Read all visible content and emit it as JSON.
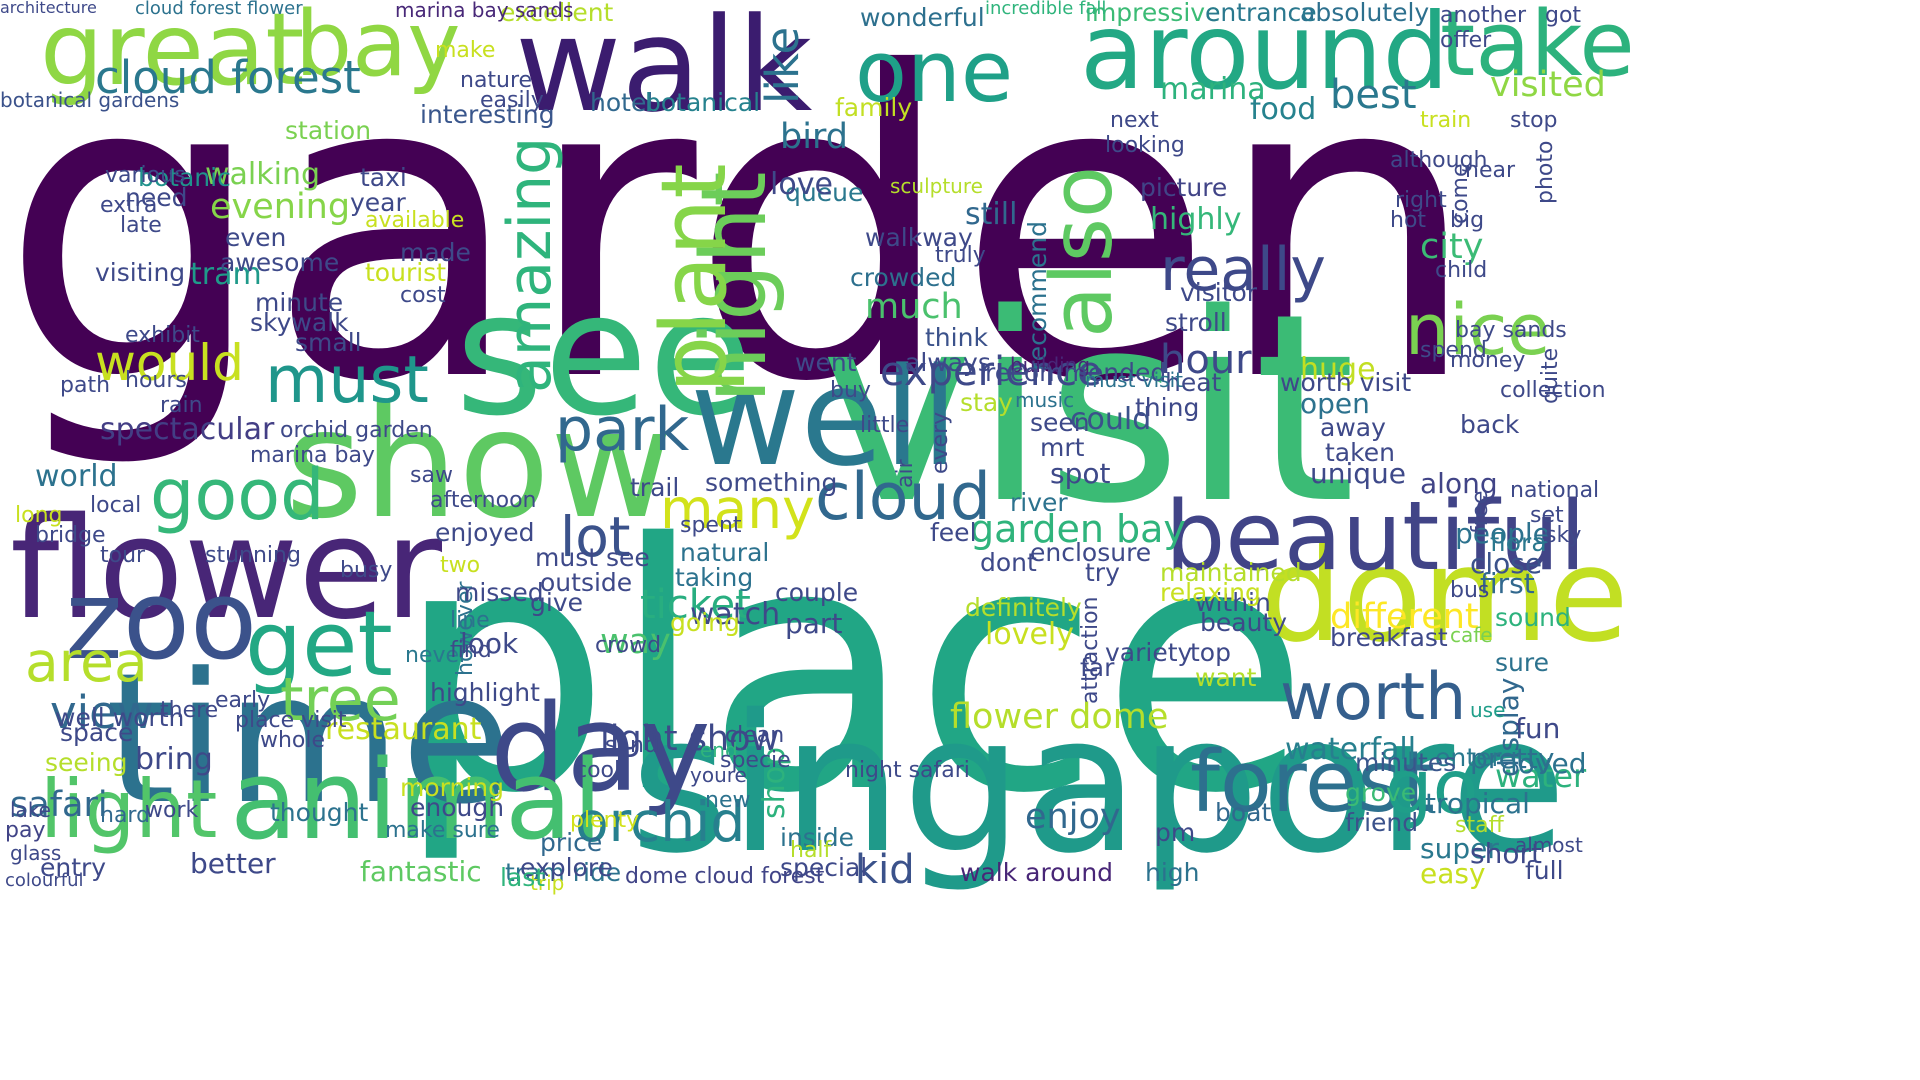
{
  "words": [
    {
      "text": "garden",
      "color": "#440154"
    },
    {
      "text": "place",
      "color": "#21a685"
    },
    {
      "text": "visit",
      "color": "#3bbb75"
    },
    {
      "text": "singapore",
      "color": "#1f9a8a"
    },
    {
      "text": "see",
      "color": "#35b779"
    },
    {
      "text": "time",
      "color": "#2c728e"
    },
    {
      "text": "walk",
      "color": "#3b1c6f"
    },
    {
      "text": "great",
      "color": "#8fd744"
    },
    {
      "text": "bay",
      "color": "#90d743"
    },
    {
      "text": "around",
      "color": "#22a884"
    },
    {
      "text": "well",
      "color": "#2a788e"
    },
    {
      "text": "show",
      "color": "#5ec962"
    },
    {
      "text": "flower",
      "color": "#482677"
    },
    {
      "text": "zoo",
      "color": "#3b528b"
    },
    {
      "text": "dome",
      "color": "#c2df23"
    },
    {
      "text": "day",
      "color": "#3e4989"
    },
    {
      "text": "animal",
      "color": "#44bf70"
    },
    {
      "text": "beautiful",
      "color": "#414487"
    },
    {
      "text": "forest",
      "color": "#2d708e"
    },
    {
      "text": "one",
      "color": "#1fa088"
    },
    {
      "text": "take",
      "color": "#2db27d"
    },
    {
      "text": "also",
      "color": "#5ec962"
    },
    {
      "text": "night",
      "color": "#6ccd5a"
    },
    {
      "text": "plant",
      "color": "#86d549"
    },
    {
      "text": "amazing",
      "color": "#2fb47c"
    },
    {
      "text": "light",
      "color": "#52c569"
    },
    {
      "text": "get",
      "color": "#22a884"
    },
    {
      "text": "good",
      "color": "#35b779"
    },
    {
      "text": "nice",
      "color": "#7ad151"
    },
    {
      "text": "go",
      "color": "#1f9e89"
    },
    {
      "text": "worth",
      "color": "#355f8d"
    },
    {
      "text": "orchid",
      "color": "#27808e"
    },
    {
      "text": "cloud",
      "color": "#31688e"
    },
    {
      "text": "really",
      "color": "#3e4989"
    },
    {
      "text": "park",
      "color": "#31688e"
    },
    {
      "text": "cloud forest",
      "color": "#2a788e"
    },
    {
      "text": "would",
      "color": "#c8e020"
    },
    {
      "text": "must",
      "color": "#1f968b"
    },
    {
      "text": "area",
      "color": "#b5de2b"
    },
    {
      "text": "tree",
      "color": "#73d056"
    },
    {
      "text": "many",
      "color": "#d2e21b"
    },
    {
      "text": "lot",
      "color": "#3b528b"
    },
    {
      "text": "view",
      "color": "#31688e"
    },
    {
      "text": "experience",
      "color": "#3e4989"
    },
    {
      "text": "hour",
      "color": "#3e4989"
    },
    {
      "text": "like",
      "color": "#2c728e"
    },
    {
      "text": "visited",
      "color": "#8fd744"
    },
    {
      "text": "best",
      "color": "#2a788e"
    },
    {
      "text": "garden bay",
      "color": "#2fb47c"
    },
    {
      "text": "light show",
      "color": "#3e4989"
    },
    {
      "text": "different",
      "color": "#fde725"
    },
    {
      "text": "flower dome",
      "color": "#b5de2b"
    },
    {
      "text": "waterfall",
      "color": "#277f8e"
    },
    {
      "text": "water",
      "color": "#2db27d"
    },
    {
      "text": "enjoy",
      "color": "#31688e"
    },
    {
      "text": "kid",
      "color": "#3b528b"
    },
    {
      "text": "ticket",
      "color": "#28ae80"
    },
    {
      "text": "way",
      "color": "#4ac16d"
    },
    {
      "text": "bird",
      "color": "#2c728e"
    },
    {
      "text": "hotel",
      "color": "#31688e"
    },
    {
      "text": "food",
      "color": "#26828e"
    },
    {
      "text": "marina",
      "color": "#2db27d"
    },
    {
      "text": "visiting",
      "color": "#3e4989"
    },
    {
      "text": "evening",
      "color": "#86d549"
    },
    {
      "text": "walking",
      "color": "#7ad151"
    },
    {
      "text": "world",
      "color": "#2c728e"
    },
    {
      "text": "city",
      "color": "#3bbb75"
    },
    {
      "text": "tram",
      "color": "#1f9a8a"
    },
    {
      "text": "restaurant",
      "color": "#c8e020"
    },
    {
      "text": "safari",
      "color": "#31688e"
    },
    {
      "text": "fantastic",
      "color": "#5ec962"
    },
    {
      "text": "tram ride",
      "color": "#2c728e"
    },
    {
      "text": "walk around",
      "color": "#482677"
    },
    {
      "text": "dome cloud forest",
      "color": "#414487"
    },
    {
      "text": "spectacular",
      "color": "#433e85"
    },
    {
      "text": "wonderful",
      "color": "#2d708e"
    },
    {
      "text": "excellent",
      "color": "#b5de2b"
    },
    {
      "text": "impressive",
      "color": "#3bbb75"
    },
    {
      "text": "absolutely",
      "color": "#2d708e"
    },
    {
      "text": "entrance",
      "color": "#2a788e"
    },
    {
      "text": "incredible fall",
      "color": "#2fb47c"
    },
    {
      "text": "marina bay sands",
      "color": "#482878"
    },
    {
      "text": "architecture",
      "color": "#3e4989"
    },
    {
      "text": "cloud forest flower",
      "color": "#2c728e"
    },
    {
      "text": "botanical gardens",
      "color": "#3b528b"
    },
    {
      "text": "interesting",
      "color": "#39568c"
    },
    {
      "text": "botanical",
      "color": "#26828e"
    },
    {
      "text": "botanic",
      "color": "#20928c"
    },
    {
      "text": "station",
      "color": "#7ad151"
    },
    {
      "text": "family",
      "color": "#c2df23"
    },
    {
      "text": "queue",
      "color": "#2a788e"
    },
    {
      "text": "love",
      "color": "#3e4989"
    },
    {
      "text": "sculpture",
      "color": "#b5de2b"
    },
    {
      "text": "still",
      "color": "#31688e"
    },
    {
      "text": "walkway",
      "color": "#3e4989"
    },
    {
      "text": "crowded",
      "color": "#2d708e"
    },
    {
      "text": "much",
      "color": "#4ac16d"
    },
    {
      "text": "think",
      "color": "#3b528b"
    },
    {
      "text": "always",
      "color": "#3e4989"
    },
    {
      "text": "picture",
      "color": "#414487"
    },
    {
      "text": "highly",
      "color": "#35b779"
    },
    {
      "text": "recommend",
      "color": "#2c728e"
    },
    {
      "text": "visitor",
      "color": "#3e4989"
    },
    {
      "text": "stroll",
      "color": "#3e4989"
    },
    {
      "text": "building",
      "color": "#482677"
    },
    {
      "text": "music",
      "color": "#2c728e"
    },
    {
      "text": "could",
      "color": "#3b528b"
    },
    {
      "text": "open",
      "color": "#2c728e"
    },
    {
      "text": "huge",
      "color": "#c2df23"
    },
    {
      "text": "back",
      "color": "#3e4989"
    },
    {
      "text": "along",
      "color": "#414487"
    },
    {
      "text": "people",
      "color": "#2c728e"
    },
    {
      "text": "close",
      "color": "#3b528b"
    },
    {
      "text": "flora",
      "color": "#2a788e"
    },
    {
      "text": "first",
      "color": "#31688e"
    },
    {
      "text": "sound",
      "color": "#2db27d"
    },
    {
      "text": "breakfast",
      "color": "#3e4989"
    },
    {
      "text": "cafe",
      "color": "#7ad151"
    },
    {
      "text": "sure",
      "color": "#2c728e"
    },
    {
      "text": "display",
      "color": "#31688e"
    },
    {
      "text": "use",
      "color": "#1f9e89"
    },
    {
      "text": "fun",
      "color": "#3e4989"
    },
    {
      "text": "loved",
      "color": "#2c728e"
    },
    {
      "text": "pretty",
      "color": "#2d708e"
    },
    {
      "text": "tropical",
      "color": "#2c728e"
    },
    {
      "text": "staff",
      "color": "#b5de2b"
    },
    {
      "text": "friend",
      "color": "#3b528b"
    },
    {
      "text": "super",
      "color": "#2a788e"
    },
    {
      "text": "short",
      "color": "#3e4989"
    },
    {
      "text": "easy",
      "color": "#c8e020"
    },
    {
      "text": "full",
      "color": "#3e4989"
    },
    {
      "text": "almost",
      "color": "#3e4989"
    },
    {
      "text": "enter",
      "color": "#2a788e"
    },
    {
      "text": "minutes",
      "color": "#39568c"
    },
    {
      "text": "grove",
      "color": "#3bbb75"
    },
    {
      "text": "boat",
      "color": "#31688e"
    },
    {
      "text": "high",
      "color": "#2c728e"
    },
    {
      "text": "pm",
      "color": "#3e4989"
    },
    {
      "text": "plenty",
      "color": "#d2e21b"
    },
    {
      "text": "price",
      "color": "#31688e"
    },
    {
      "text": "explore",
      "color": "#3e4989"
    },
    {
      "text": "trip",
      "color": "#c8e020"
    },
    {
      "text": "last",
      "color": "#2fb47c"
    },
    {
      "text": "inside",
      "color": "#2c728e"
    },
    {
      "text": "special",
      "color": "#3e4989"
    },
    {
      "text": "half",
      "color": "#b5de2b"
    },
    {
      "text": "new",
      "color": "#2c728e"
    },
    {
      "text": "shop",
      "color": "#2db27d"
    },
    {
      "text": "youre",
      "color": "#3e4989"
    },
    {
      "text": "end",
      "color": "#2fb47c"
    },
    {
      "text": "enough",
      "color": "#3e4989"
    },
    {
      "text": "morning",
      "color": "#c8e020"
    },
    {
      "text": "thought",
      "color": "#2c728e"
    },
    {
      "text": "make sure",
      "color": "#2c728e"
    },
    {
      "text": "bring",
      "color": "#3e4989"
    },
    {
      "text": "seeing",
      "color": "#b5de2b"
    },
    {
      "text": "space",
      "color": "#3e4989"
    },
    {
      "text": "well worth",
      "color": "#3e4989"
    },
    {
      "text": "pay",
      "color": "#414487"
    },
    {
      "text": "entry",
      "color": "#3e4989"
    },
    {
      "text": "better",
      "color": "#3e4989"
    },
    {
      "text": "hard",
      "color": "#31688e"
    },
    {
      "text": "work",
      "color": "#3e4989"
    },
    {
      "text": "lake",
      "color": "#3e4989"
    },
    {
      "text": "glass",
      "color": "#3e4989"
    },
    {
      "text": "colourful",
      "color": "#3e4989"
    },
    {
      "text": "however",
      "color": "#2c728e"
    },
    {
      "text": "never",
      "color": "#2a788e"
    },
    {
      "text": "highlight",
      "color": "#3e4989"
    },
    {
      "text": "look",
      "color": "#3e4989"
    },
    {
      "text": "line",
      "color": "#2c728e"
    },
    {
      "text": "missed",
      "color": "#3e4989"
    },
    {
      "text": "give",
      "color": "#3e4989"
    },
    {
      "text": "outside",
      "color": "#3e4989"
    },
    {
      "text": "must see",
      "color": "#3e4989"
    },
    {
      "text": "taking",
      "color": "#2c728e"
    },
    {
      "text": "watch",
      "color": "#3e4989"
    },
    {
      "text": "going",
      "color": "#c8e020"
    },
    {
      "text": "part",
      "color": "#3e4989"
    },
    {
      "text": "couple",
      "color": "#3e4989"
    },
    {
      "text": "natural",
      "color": "#2c728e"
    },
    {
      "text": "spent",
      "color": "#3e4989"
    },
    {
      "text": "enjoyed",
      "color": "#3e4989"
    },
    {
      "text": "trail",
      "color": "#3e4989"
    },
    {
      "text": "something",
      "color": "#3e4989"
    },
    {
      "text": "feel",
      "color": "#3e4989"
    },
    {
      "text": "dont",
      "color": "#3e4989"
    },
    {
      "text": "definitely",
      "color": "#b5de2b"
    },
    {
      "text": "lovely",
      "color": "#c8e020"
    },
    {
      "text": "variety",
      "color": "#3e4989"
    },
    {
      "text": "top",
      "color": "#3e4989"
    },
    {
      "text": "want",
      "color": "#b5de2b"
    },
    {
      "text": "far",
      "color": "#3e4989"
    },
    {
      "text": "beauty",
      "color": "#3e4989"
    },
    {
      "text": "within",
      "color": "#3e4989"
    },
    {
      "text": "maintained",
      "color": "#b5de2b"
    },
    {
      "text": "relaxing",
      "color": "#c8e020"
    },
    {
      "text": "enclosure",
      "color": "#3e4989"
    },
    {
      "text": "try",
      "color": "#3e4989"
    },
    {
      "text": "river",
      "color": "#2c728e"
    },
    {
      "text": "spot",
      "color": "#3e4989"
    },
    {
      "text": "mrt",
      "color": "#3e4989"
    },
    {
      "text": "seen",
      "color": "#3e4989"
    },
    {
      "text": "stay",
      "color": "#b5de2b"
    },
    {
      "text": "thing",
      "color": "#3e4989"
    },
    {
      "text": "heat",
      "color": "#3e4989"
    },
    {
      "text": "recommended",
      "color": "#3e4989"
    },
    {
      "text": "must visit",
      "color": "#2c728e"
    },
    {
      "text": "worth visit",
      "color": "#3e4989"
    },
    {
      "text": "away",
      "color": "#3e4989"
    },
    {
      "text": "taken",
      "color": "#3e4989"
    },
    {
      "text": "unique",
      "color": "#3e4989"
    },
    {
      "text": "went",
      "color": "#3e4989"
    },
    {
      "text": "buy",
      "color": "#3e4989"
    },
    {
      "text": "even",
      "color": "#3e4989"
    },
    {
      "text": "awesome",
      "color": "#3e4989"
    },
    {
      "text": "need",
      "color": "#3e4989"
    },
    {
      "text": "various",
      "color": "#3e4989"
    },
    {
      "text": "extra",
      "color": "#3e4989"
    },
    {
      "text": "late",
      "color": "#3e4989"
    },
    {
      "text": "taxi",
      "color": "#3e4989"
    },
    {
      "text": "year",
      "color": "#3e4989"
    },
    {
      "text": "available",
      "color": "#c8e020"
    },
    {
      "text": "made",
      "color": "#3e4989"
    },
    {
      "text": "tourist",
      "color": "#c8e020"
    },
    {
      "text": "cost",
      "color": "#3e4989"
    },
    {
      "text": "minute",
      "color": "#3e4989"
    },
    {
      "text": "skywalk",
      "color": "#3e4989"
    },
    {
      "text": "small",
      "color": "#3e4989"
    },
    {
      "text": "exhibit",
      "color": "#3e4989"
    },
    {
      "text": "hours",
      "color": "#3e4989"
    },
    {
      "text": "orchid garden",
      "color": "#3e4989"
    },
    {
      "text": "marina bay",
      "color": "#3e4989"
    },
    {
      "text": "saw",
      "color": "#3e4989"
    },
    {
      "text": "afternoon",
      "color": "#3e4989"
    },
    {
      "text": "long",
      "color": "#c8e020"
    },
    {
      "text": "local",
      "color": "#3e4989"
    },
    {
      "text": "bridge",
      "color": "#3e4989"
    },
    {
      "text": "tour",
      "color": "#3e4989"
    },
    {
      "text": "stunning",
      "color": "#3e4989"
    },
    {
      "text": "busy",
      "color": "#3e4989"
    },
    {
      "text": "two",
      "color": "#c8e020"
    },
    {
      "text": "crowd",
      "color": "#3e4989"
    },
    {
      "text": "find",
      "color": "#3e4989"
    },
    {
      "text": "place visit",
      "color": "#3e4989"
    },
    {
      "text": "early",
      "color": "#3e4989"
    },
    {
      "text": "whole",
      "color": "#3e4989"
    },
    {
      "text": "cool",
      "color": "#3e4989"
    },
    {
      "text": "sand",
      "color": "#3e4989"
    },
    {
      "text": "there",
      "color": "#3e4989"
    },
    {
      "text": "night safari",
      "color": "#3e4989"
    },
    {
      "text": "clean",
      "color": "#3e4989"
    },
    {
      "text": "specie",
      "color": "#3e4989"
    },
    {
      "text": "little",
      "color": "#3e4989"
    },
    {
      "text": "air",
      "color": "#3e4989"
    },
    {
      "text": "rain",
      "color": "#3e4989"
    },
    {
      "text": "path",
      "color": "#3e4989"
    },
    {
      "text": "every",
      "color": "#3e4989"
    },
    {
      "text": "truly",
      "color": "#3e4989"
    },
    {
      "text": "attraction",
      "color": "#3e4989"
    },
    {
      "text": "free",
      "color": "#3e4989"
    },
    {
      "text": "spend",
      "color": "#3e4989"
    },
    {
      "text": "child",
      "color": "#3e4989"
    },
    {
      "text": "hot",
      "color": "#3e4989"
    },
    {
      "text": "right",
      "color": "#3e4989"
    },
    {
      "text": "big",
      "color": "#3e4989"
    },
    {
      "text": "come",
      "color": "#3e4989"
    },
    {
      "text": "near",
      "color": "#3e4989"
    },
    {
      "text": "photo",
      "color": "#3e4989"
    },
    {
      "text": "stop",
      "color": "#3e4989"
    },
    {
      "text": "train",
      "color": "#c8e020"
    },
    {
      "text": "got",
      "color": "#3e4989"
    },
    {
      "text": "offer",
      "color": "#3e4989"
    },
    {
      "text": "another",
      "color": "#3e4989"
    },
    {
      "text": "next",
      "color": "#3e4989"
    },
    {
      "text": "looking",
      "color": "#3e4989"
    },
    {
      "text": "nature",
      "color": "#3e4989"
    },
    {
      "text": "easily",
      "color": "#3e4989"
    },
    {
      "text": "make",
      "color": "#c8e020"
    },
    {
      "text": "although",
      "color": "#3e4989"
    },
    {
      "text": "bay sands",
      "color": "#3e4989"
    },
    {
      "text": "money",
      "color": "#3e4989"
    },
    {
      "text": "quite",
      "color": "#3e4989"
    },
    {
      "text": "collection",
      "color": "#3e4989"
    },
    {
      "text": "bus",
      "color": "#3e4989"
    },
    {
      "text": "set",
      "color": "#3e4989"
    },
    {
      "text": "national",
      "color": "#3e4989"
    },
    {
      "text": "sky",
      "color": "#3e4989"
    }
  ]
}
